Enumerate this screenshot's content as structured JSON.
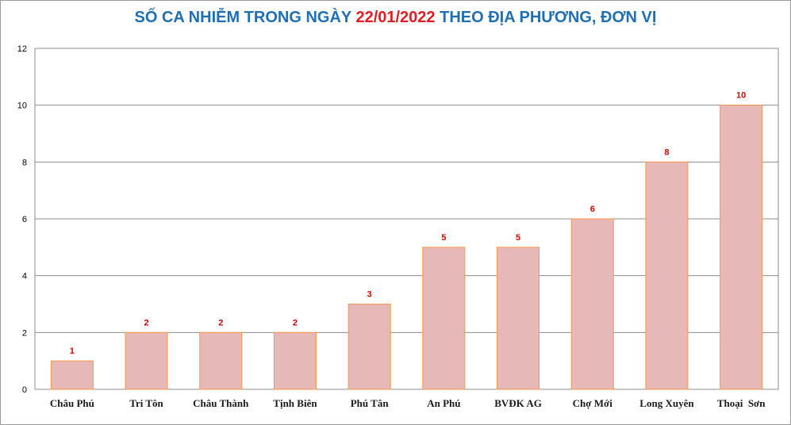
{
  "chart_data": {
    "type": "bar",
    "title_prefix": "SỐ CA NHIỄM TRONG NGÀY",
    "title_date": "22/01/2022",
    "title_suffix": "THEO ĐỊA PHƯƠNG, ĐƠN VỊ",
    "categories": [
      "Châu Phú",
      "Tri Tôn",
      "Châu Thành",
      "Tịnh Biên",
      "Phú Tân",
      "An Phú",
      "BVĐK AG",
      "Chợ Mới",
      "Long Xuyên",
      "Thoại  Sơn"
    ],
    "values": [
      1,
      2,
      2,
      2,
      3,
      5,
      5,
      6,
      8,
      10
    ],
    "ylim": [
      0,
      12
    ],
    "yticks": [
      0,
      2,
      4,
      6,
      8,
      10,
      12
    ],
    "grid": true,
    "legend": "none",
    "colors": {
      "bar_fill": "#e6b8b7",
      "bar_stroke": "#f79646",
      "title": "#1f6fb4",
      "title_highlight": "#e31b23",
      "data_label": "#d40000",
      "gridline": "#8c8c8c"
    }
  }
}
